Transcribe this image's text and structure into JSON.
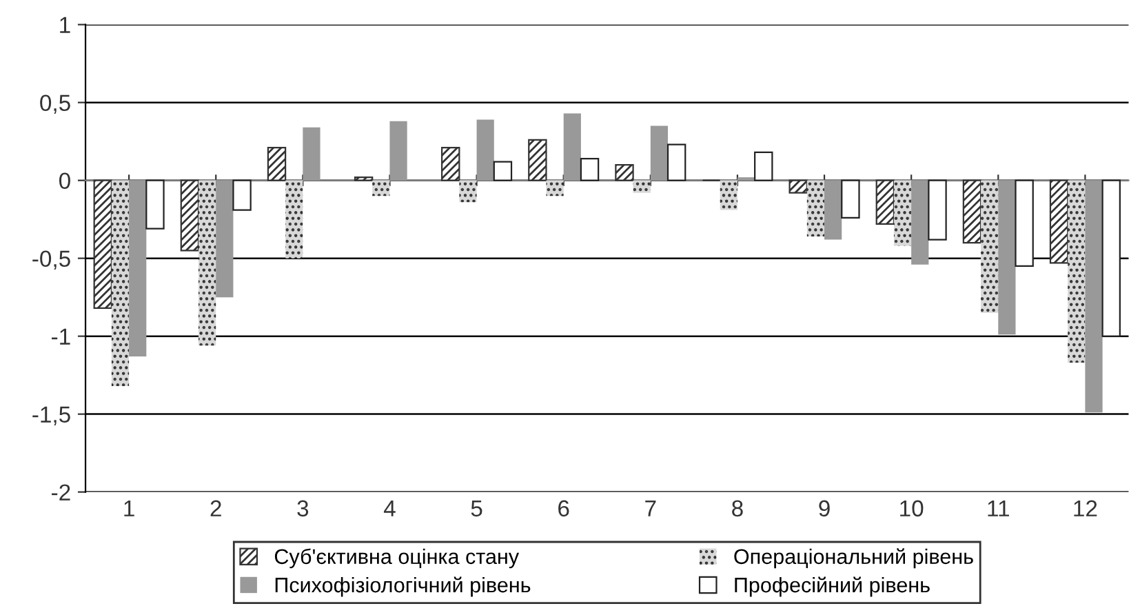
{
  "chart_data": {
    "type": "bar",
    "categories": [
      "1",
      "2",
      "3",
      "4",
      "5",
      "6",
      "7",
      "8",
      "9",
      "10",
      "11",
      "12"
    ],
    "series": [
      {
        "name": "Суб'єктивна оцінка стану",
        "color": "#333333",
        "values": [
          -0.82,
          -0.45,
          0.21,
          0.02,
          0.21,
          0.26,
          0.1,
          0.0,
          -0.08,
          -0.28,
          -0.4,
          -0.53
        ]
      },
      {
        "name": "Операціональний рівень",
        "color": "#d8d8d8",
        "values": [
          -1.32,
          -1.06,
          -0.5,
          -0.1,
          -0.14,
          -0.1,
          -0.08,
          -0.19,
          -0.36,
          -0.42,
          -0.85,
          -1.17
        ]
      },
      {
        "name": "Психофізіологічний рівень",
        "color": "#999999",
        "values": [
          -1.13,
          -0.75,
          0.34,
          0.38,
          0.39,
          0.43,
          0.35,
          0.02,
          -0.38,
          -0.54,
          -0.99,
          -1.49
        ]
      },
      {
        "name": "Професійний рівень",
        "color": "#ffffff",
        "values": [
          -0.31,
          -0.19,
          null,
          null,
          0.12,
          0.14,
          0.23,
          0.18,
          -0.24,
          -0.38,
          -0.55,
          -1.0
        ]
      }
    ],
    "ylim": [
      -2,
      1
    ],
    "yticks": [
      1,
      {
        "value": 0.5,
        "label": "0,5"
      },
      0,
      {
        "value": -0.5,
        "label": "-0,5"
      },
      -1,
      {
        "value": -1.5,
        "label": "-1,5"
      },
      -2
    ],
    "grid": "y",
    "legend": "bottom"
  }
}
